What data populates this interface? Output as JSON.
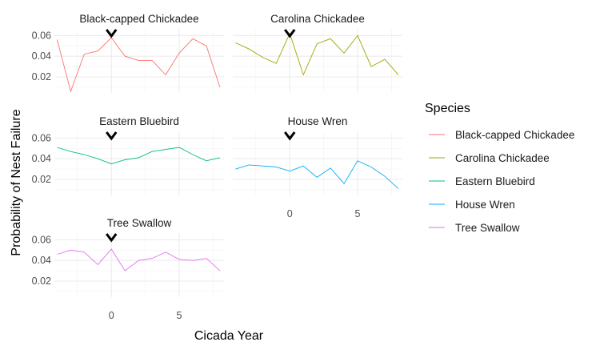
{
  "chart_data": {
    "type": "line",
    "xlabel": "Cicada Year",
    "ylabel": "Probability of Nest Failure",
    "xlim": [
      -4.2,
      8.3
    ],
    "ylim": [
      0.0045,
      0.0665
    ],
    "x_ticks": [
      0,
      5
    ],
    "x_tick_labels": [
      "0",
      "5"
    ],
    "y_ticks": [
      0.02,
      0.04,
      0.06
    ],
    "y_tick_labels": [
      "0.02",
      "0.04",
      "0.06"
    ],
    "grid": true,
    "legend": {
      "title": "Species",
      "position": "right",
      "entries": [
        "Black-capped Chickadee",
        "Carolina Chickadee",
        "Eastern Bluebird",
        "House Wren",
        "Tree Swallow"
      ]
    },
    "marker": {
      "x": 0,
      "symbol": "v",
      "description": "downward arrow at cicada emergence year"
    },
    "series": [
      {
        "name": "Black-capped Chickadee",
        "color": "#F8766D",
        "x": [
          -4,
          -3,
          -2,
          -1,
          0,
          1,
          2,
          3,
          4,
          5,
          6,
          7,
          8
        ],
        "values": [
          0.056,
          0.006,
          0.042,
          0.045,
          0.058,
          0.04,
          0.036,
          0.036,
          0.022,
          0.043,
          0.057,
          0.05,
          0.01
        ]
      },
      {
        "name": "Carolina Chickadee",
        "color": "#A3A500",
        "x": [
          -4,
          -3,
          -2,
          -1,
          0,
          1,
          2,
          3,
          4,
          5,
          6,
          7,
          8
        ],
        "values": [
          0.053,
          0.047,
          0.039,
          0.033,
          0.062,
          0.022,
          0.052,
          0.057,
          0.043,
          0.06,
          0.03,
          0.037,
          0.022
        ]
      },
      {
        "name": "Eastern Bluebird",
        "color": "#00BF7D",
        "x": [
          -4,
          -3,
          -2,
          -1,
          0,
          1,
          2,
          3,
          4,
          5,
          6,
          7,
          8
        ],
        "values": [
          0.051,
          0.047,
          0.044,
          0.04,
          0.035,
          0.039,
          0.041,
          0.047,
          0.049,
          0.051,
          0.044,
          0.038,
          0.041
        ]
      },
      {
        "name": "House Wren",
        "color": "#00B0F6",
        "x": [
          -4,
          -3,
          -2,
          -1,
          0,
          1,
          2,
          3,
          4,
          5,
          6,
          7,
          8
        ],
        "values": [
          0.03,
          0.034,
          0.033,
          0.032,
          0.028,
          0.033,
          0.022,
          0.031,
          0.016,
          0.038,
          0.032,
          0.023,
          0.011
        ]
      },
      {
        "name": "Tree Swallow",
        "color": "#E76BF3",
        "x": [
          -4,
          -3,
          -2,
          -1,
          0,
          1,
          2,
          3,
          4,
          5,
          6,
          7,
          8
        ],
        "values": [
          0.046,
          0.05,
          0.048,
          0.036,
          0.051,
          0.03,
          0.04,
          0.042,
          0.048,
          0.041,
          0.04,
          0.042,
          0.03
        ]
      }
    ]
  }
}
